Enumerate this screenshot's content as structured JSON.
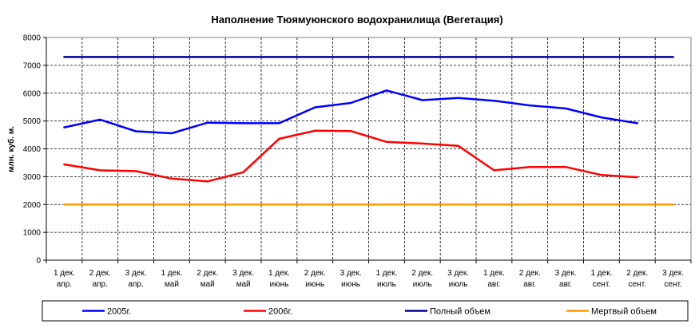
{
  "chart_data": {
    "type": "line",
    "title": "Наполнение Тюямуюнского водохранилища (Вегетация)",
    "ylabel": "млн. куб. м.",
    "xlabel": "",
    "ylim": [
      0,
      8000
    ],
    "yticks": [
      0,
      1000,
      2000,
      3000,
      4000,
      5000,
      6000,
      7000,
      8000
    ],
    "grid": true,
    "legend_position": "bottom",
    "categories": [
      [
        "1 дек.",
        "апр."
      ],
      [
        "2 дек.",
        "апр."
      ],
      [
        "3 дек.",
        "апр."
      ],
      [
        "1 дек.",
        "май"
      ],
      [
        "2 дек.",
        "май"
      ],
      [
        "3 дек.",
        "май"
      ],
      [
        "1 дек.",
        "июнь"
      ],
      [
        "2 дек.",
        "июнь"
      ],
      [
        "3 дек.",
        "июнь"
      ],
      [
        "1 дек.",
        "июль"
      ],
      [
        "2 дек.",
        "июль"
      ],
      [
        "3 дек.",
        "июль"
      ],
      [
        "1 дек.",
        "авг."
      ],
      [
        "2 дек.",
        "авг."
      ],
      [
        "3 дек.",
        "авг."
      ],
      [
        "1 дек.",
        "сент."
      ],
      [
        "2 дек.",
        "сент."
      ],
      [
        "3 дек.",
        "сент."
      ]
    ],
    "series": [
      {
        "name": "2005г.",
        "color": "#0000ff",
        "values": [
          4770,
          5050,
          4630,
          4560,
          4940,
          4920,
          4920,
          5490,
          5650,
          6100,
          5750,
          5830,
          5730,
          5560,
          5450,
          5130,
          4920,
          null
        ]
      },
      {
        "name": "2006г.",
        "color": "#ff0000",
        "values": [
          3440,
          3230,
          3200,
          2930,
          2830,
          3160,
          4360,
          4650,
          4640,
          4250,
          4190,
          4110,
          3230,
          3350,
          3350,
          3060,
          2980,
          null
        ]
      },
      {
        "name": "Полный объем",
        "color": "#000099",
        "values": [
          7300,
          7300,
          7300,
          7300,
          7300,
          7300,
          7300,
          7300,
          7300,
          7300,
          7300,
          7300,
          7300,
          7300,
          7300,
          7300,
          7300,
          7300
        ]
      },
      {
        "name": "Мертвый объем",
        "color": "#ff9900",
        "values": [
          2000,
          2000,
          2000,
          2000,
          2000,
          2000,
          2000,
          2000,
          2000,
          2000,
          2000,
          2000,
          2000,
          2000,
          2000,
          2000,
          2000,
          2000
        ]
      }
    ]
  }
}
